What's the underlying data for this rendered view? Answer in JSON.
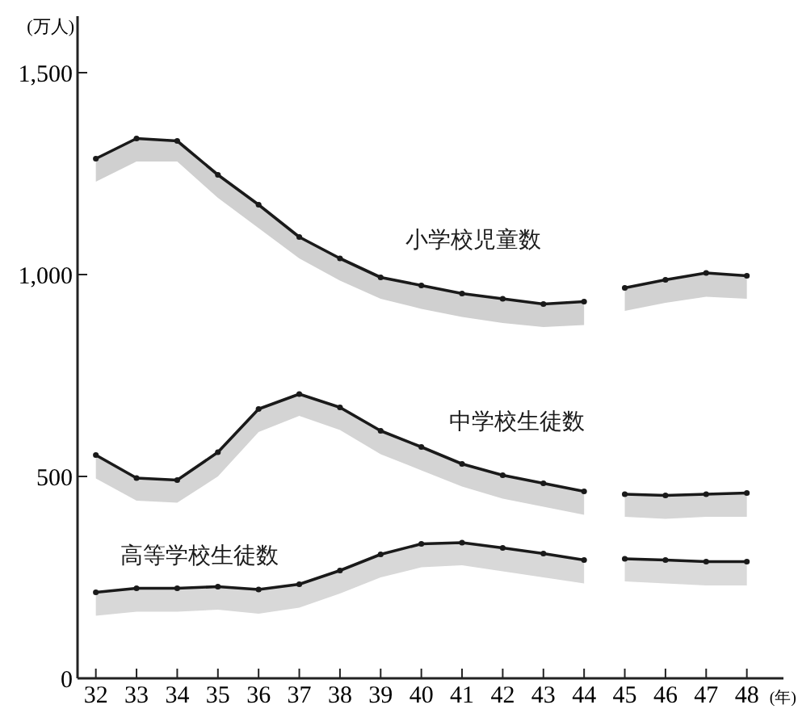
{
  "chart_data": {
    "type": "line",
    "ylabel": "(万人)",
    "xlabel": "(年)",
    "x": [
      32,
      33,
      34,
      35,
      36,
      37,
      38,
      39,
      40,
      41,
      42,
      43,
      44
    ],
    "xlim": [
      31.55,
      48.9
    ],
    "xticks": [
      32,
      33,
      34,
      35,
      36,
      37,
      38,
      39,
      40,
      41,
      42,
      43,
      44,
      45,
      46,
      47,
      48
    ],
    "ylim": [
      0,
      1640
    ],
    "yticks": [
      0,
      500,
      {
        "value": 1000,
        "label": "1,000"
      },
      {
        "value": 1500,
        "label": "1,500"
      }
    ],
    "grid": false,
    "marker": "circle",
    "line_style": "solid",
    "series": [
      {
        "name": "小学校児童数",
        "color": "#1a1a1a",
        "values": [
          1287,
          1337,
          1331,
          1247,
          1173,
          1093,
          1040,
          993,
          973,
          953,
          940,
          927,
          933
        ],
        "lower": [
          1230,
          1280,
          1280,
          1190,
          1115,
          1040,
          985,
          940,
          915,
          895,
          880,
          870,
          875
        ],
        "upper": [
          1287,
          1337,
          1331,
          1247,
          1173,
          1093,
          1040,
          993,
          973,
          953,
          940,
          927,
          933
        ]
      },
      {
        "color": "#1a1a1a",
        "x": [
          45,
          46,
          47,
          48
        ],
        "values": [
          967,
          987,
          1004,
          997
        ],
        "lower": [
          910,
          930,
          945,
          940
        ],
        "upper": [
          967,
          987,
          1004,
          997
        ]
      },
      {
        "name": "中学校生徒数",
        "color": "#1a1a1a",
        "values": [
          553,
          496,
          491,
          560,
          667,
          704,
          671,
          613,
          573,
          531,
          503,
          483,
          463
        ],
        "lower": [
          495,
          440,
          435,
          500,
          610,
          650,
          615,
          555,
          515,
          475,
          445,
          425,
          405
        ],
        "upper": [
          553,
          496,
          491,
          560,
          667,
          704,
          671,
          613,
          573,
          531,
          503,
          483,
          463
        ]
      },
      {
        "color": "#1a1a1a",
        "x": [
          45,
          46,
          47,
          48
        ],
        "values": [
          456,
          453,
          456,
          459
        ],
        "lower": [
          400,
          395,
          400,
          400
        ],
        "upper": [
          456,
          453,
          456,
          459
        ]
      },
      {
        "name": "高等学校生徒数",
        "color": "#1a1a1a",
        "values": [
          213,
          223,
          223,
          227,
          220,
          233,
          267,
          307,
          333,
          336,
          323,
          309,
          293
        ],
        "lower": [
          155,
          165,
          165,
          170,
          160,
          175,
          210,
          250,
          275,
          280,
          265,
          250,
          235
        ],
        "upper": [
          213,
          223,
          223,
          227,
          220,
          233,
          267,
          307,
          333,
          336,
          323,
          309,
          293
        ]
      },
      {
        "color": "#1a1a1a",
        "x": [
          45,
          46,
          47,
          48
        ],
        "values": [
          296,
          293,
          289,
          289
        ],
        "lower": [
          240,
          235,
          230,
          230
        ],
        "upper": [
          296,
          293,
          289,
          289
        ]
      }
    ]
  }
}
